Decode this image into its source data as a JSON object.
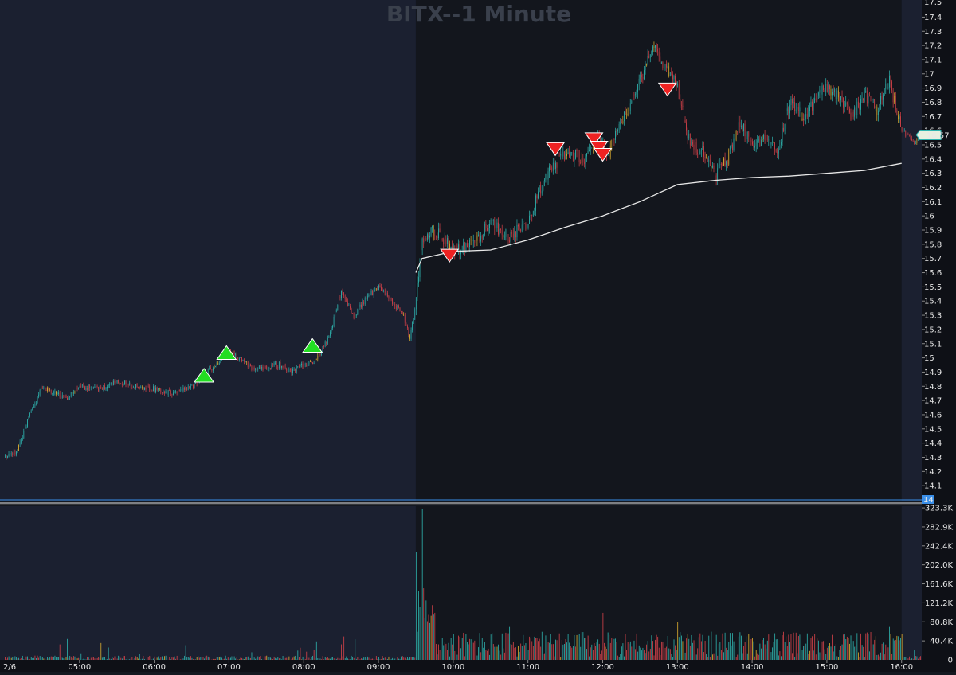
{
  "chart_title": "BITX--1 Minute",
  "last_price_label": "16.57",
  "top_right_value": "17.5",
  "separator_price_label": "14",
  "colors": {
    "background_extended": "#1b2030",
    "background_regular": "#13161d",
    "candle_up": "#2fb5b0",
    "candle_down": "#d8434a",
    "candle_alt": "#e0b030",
    "vwap": "#e8e8e8",
    "buy_marker": "#22dd22",
    "sell_marker": "#ee2222",
    "separator": "#3a8ee8",
    "axis_text": "#e8e8e8"
  },
  "chart_data": [
    {
      "type": "candlestick",
      "title": "BITX--1 Minute",
      "date_label": "2/6",
      "x_ticks": [
        "05:00",
        "06:00",
        "07:00",
        "08:00",
        "09:00",
        "10:00",
        "11:00",
        "12:00",
        "13:00",
        "14:00",
        "15:00",
        "16:00"
      ],
      "x_range": [
        "04:00",
        "16:20"
      ],
      "regular_session": [
        "09:30",
        "16:00"
      ],
      "y_ticks": [
        14.1,
        14.2,
        14.3,
        14.4,
        14.5,
        14.6,
        14.7,
        14.8,
        14.9,
        15,
        15.1,
        15.2,
        15.3,
        15.4,
        15.5,
        15.6,
        15.7,
        15.8,
        15.9,
        16,
        16.1,
        16.2,
        16.3,
        16.4,
        16.5,
        16.6,
        16.7,
        16.8,
        16.9,
        17,
        17.1,
        17.2,
        17.3,
        17.4
      ],
      "ylim": [
        14.0,
        17.52
      ],
      "last_price": 16.57,
      "price_path": [
        [
          "04:00",
          14.3
        ],
        [
          "04:10",
          14.35
        ],
        [
          "04:20",
          14.6
        ],
        [
          "04:30",
          14.8
        ],
        [
          "04:40",
          14.75
        ],
        [
          "04:50",
          14.72
        ],
        [
          "05:00",
          14.8
        ],
        [
          "05:15",
          14.78
        ],
        [
          "05:30",
          14.83
        ],
        [
          "05:45",
          14.8
        ],
        [
          "06:00",
          14.78
        ],
        [
          "06:15",
          14.75
        ],
        [
          "06:30",
          14.8
        ],
        [
          "06:45",
          14.92
        ],
        [
          "07:00",
          15.05
        ],
        [
          "07:10",
          14.98
        ],
        [
          "07:20",
          14.92
        ],
        [
          "07:40",
          14.95
        ],
        [
          "07:50",
          14.9
        ],
        [
          "08:00",
          14.95
        ],
        [
          "08:10",
          14.98
        ],
        [
          "08:20",
          15.15
        ],
        [
          "08:30",
          15.47
        ],
        [
          "08:40",
          15.3
        ],
        [
          "08:50",
          15.42
        ],
        [
          "09:00",
          15.5
        ],
        [
          "09:10",
          15.4
        ],
        [
          "09:20",
          15.3
        ],
        [
          "09:25",
          15.12
        ],
        [
          "09:30",
          15.4
        ],
        [
          "09:35",
          15.85
        ],
        [
          "09:45",
          15.9
        ],
        [
          "10:00",
          15.75
        ],
        [
          "10:15",
          15.8
        ],
        [
          "10:30",
          15.95
        ],
        [
          "10:45",
          15.85
        ],
        [
          "11:00",
          15.95
        ],
        [
          "11:10",
          16.2
        ],
        [
          "11:20",
          16.35
        ],
        [
          "11:30",
          16.45
        ],
        [
          "11:45",
          16.4
        ],
        [
          "11:55",
          16.55
        ],
        [
          "12:05",
          16.45
        ],
        [
          "12:20",
          16.75
        ],
        [
          "12:30",
          16.95
        ],
        [
          "12:40",
          17.2
        ],
        [
          "12:50",
          17.05
        ],
        [
          "13:00",
          16.9
        ],
        [
          "13:10",
          16.5
        ],
        [
          "13:20",
          16.45
        ],
        [
          "13:30",
          16.28
        ],
        [
          "13:40",
          16.4
        ],
        [
          "13:50",
          16.65
        ],
        [
          "14:00",
          16.5
        ],
        [
          "14:10",
          16.55
        ],
        [
          "14:20",
          16.45
        ],
        [
          "14:30",
          16.8
        ],
        [
          "14:40",
          16.7
        ],
        [
          "14:50",
          16.8
        ],
        [
          "15:00",
          16.92
        ],
        [
          "15:10",
          16.82
        ],
        [
          "15:20",
          16.7
        ],
        [
          "15:30",
          16.85
        ],
        [
          "15:40",
          16.75
        ],
        [
          "15:50",
          16.95
        ],
        [
          "16:00",
          16.6
        ],
        [
          "16:10",
          16.52
        ],
        [
          "16:15",
          16.57
        ]
      ],
      "vwap": [
        [
          "09:30",
          15.6
        ],
        [
          "09:35",
          15.7
        ],
        [
          "10:00",
          15.75
        ],
        [
          "10:30",
          15.76
        ],
        [
          "11:00",
          15.83
        ],
        [
          "11:30",
          15.92
        ],
        [
          "12:00",
          16.0
        ],
        [
          "12:30",
          16.1
        ],
        [
          "13:00",
          16.22
        ],
        [
          "13:30",
          16.25
        ],
        [
          "14:00",
          16.27
        ],
        [
          "14:30",
          16.28
        ],
        [
          "15:00",
          16.3
        ],
        [
          "15:30",
          16.32
        ],
        [
          "16:00",
          16.37
        ]
      ],
      "buy_signals": [
        [
          "06:40",
          14.88
        ],
        [
          "06:58",
          15.04
        ],
        [
          "08:07",
          15.09
        ]
      ],
      "sell_signals": [
        [
          "09:57",
          15.72
        ],
        [
          "11:22",
          16.47
        ],
        [
          "11:53",
          16.54
        ],
        [
          "11:57",
          16.48
        ],
        [
          "12:00",
          16.43
        ],
        [
          "12:52",
          16.89
        ]
      ]
    },
    {
      "type": "bar",
      "title": "Volume",
      "y_ticks": [
        "40.4K",
        "80.8K",
        "121.2K",
        "161.6K",
        "202.0K",
        "242.4K",
        "282.9K",
        "323.3K"
      ],
      "ylim": [
        0,
        323300
      ],
      "last_tick": "0",
      "notable_spikes": [
        [
          "09:30",
          230000
        ],
        [
          "09:35",
          320000
        ],
        [
          "09:45",
          100000
        ],
        [
          "10:45",
          70000
        ],
        [
          "12:00",
          100000
        ],
        [
          "13:00",
          80000
        ],
        [
          "15:50",
          70000
        ],
        [
          "16:00",
          55000
        ]
      ]
    }
  ]
}
